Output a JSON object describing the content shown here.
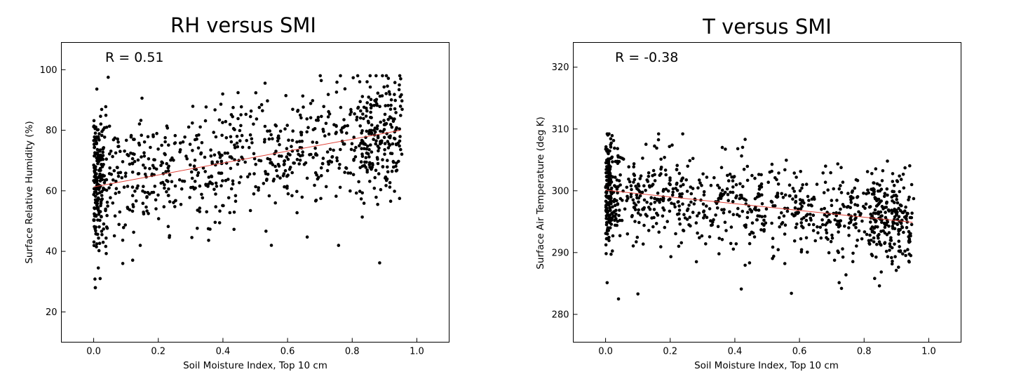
{
  "chart_data": [
    {
      "type": "scatter",
      "title": "RH versus SMI",
      "annotation": "R = 0.51",
      "xlabel": "Soil Moisture Index, Top 10 cm",
      "ylabel": "Surface Relative Humidity (%)",
      "xlim": [
        -0.1,
        1.1
      ],
      "ylim": [
        10,
        109
      ],
      "xticks": [
        0.0,
        0.2,
        0.4,
        0.6,
        0.8,
        1.0
      ],
      "xtick_labels": [
        "0.0",
        "0.2",
        "0.4",
        "0.6",
        "0.8",
        "1.0"
      ],
      "yticks": [
        20,
        40,
        60,
        80,
        100
      ],
      "ytick_labels": [
        "20",
        "40",
        "60",
        "80",
        "100"
      ],
      "grid": false,
      "trend_line": {
        "x": [
          0.0,
          0.95
        ],
        "y": [
          61.3,
          80.0
        ],
        "color": "#e0443a"
      },
      "point_color": "#000000",
      "scatter_model": {
        "n": 1000,
        "intercept": 61.3,
        "slope": 19.7,
        "noise": 12,
        "ymin": 28,
        "ymax": 98,
        "extremes": [
          [
            0.005,
            28.0
          ],
          [
            0.045,
            97.5
          ],
          [
            0.885,
            36.2
          ],
          [
            0.02,
            31.0
          ],
          [
            0.55,
            42.0
          ],
          [
            0.95,
            97.0
          ]
        ]
      }
    },
    {
      "type": "scatter",
      "title": "T versus SMI",
      "annotation": "R = -0.38",
      "xlabel": "Soil Moisture Index, Top 10 cm",
      "ylabel": "Surface  Air Temperature (deg K)",
      "xlim": [
        -0.1,
        1.1
      ],
      "ylim": [
        275.5,
        324
      ],
      "xticks": [
        0.0,
        0.2,
        0.4,
        0.6,
        0.8,
        1.0
      ],
      "xtick_labels": [
        "0.0",
        "0.2",
        "0.4",
        "0.6",
        "0.8",
        "1.0"
      ],
      "yticks": [
        280,
        290,
        300,
        310,
        320
      ],
      "ytick_labels": [
        "280",
        "290",
        "300",
        "310",
        "320"
      ],
      "grid": false,
      "trend_line": {
        "x": [
          0.0,
          0.95
        ],
        "y": [
          300.1,
          294.9
        ],
        "color": "#e0443a"
      },
      "point_color": "#000000",
      "scatter_model": {
        "n": 1000,
        "intercept": 300.1,
        "slope": -5.5,
        "noise": 4.5,
        "ymin": 282.5,
        "ymax": 309.2,
        "extremes": [
          [
            0.005,
            309.2
          ],
          [
            0.04,
            282.5
          ],
          [
            0.1,
            283.3
          ],
          [
            0.42,
            284.1
          ],
          [
            0.575,
            283.4
          ],
          [
            0.73,
            284.2
          ]
        ]
      }
    }
  ]
}
